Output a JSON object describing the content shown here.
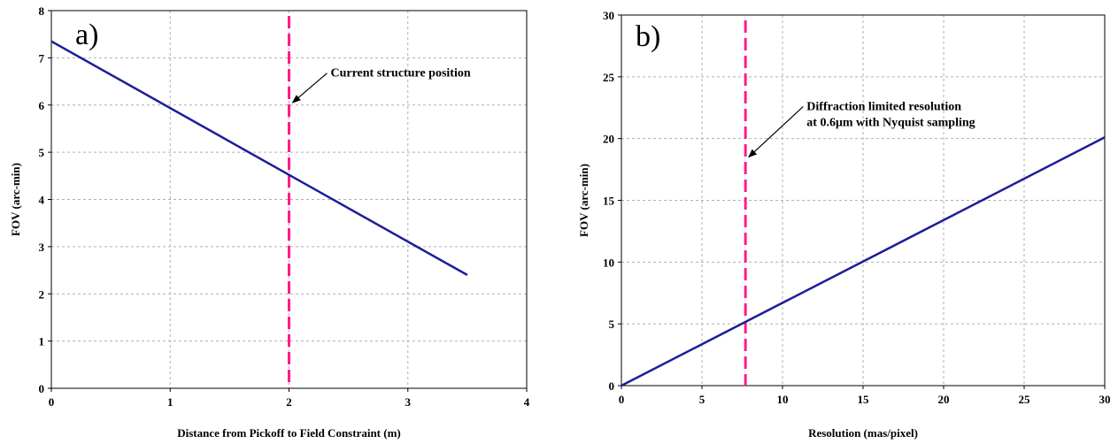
{
  "chart_data": [
    {
      "type": "line",
      "panel_label": "a)",
      "xlabel": "Distance from Pickoff to Field Constraint (m)",
      "ylabel": "FOV (arc-min)",
      "xlim": [
        0,
        4
      ],
      "ylim": [
        0,
        8
      ],
      "xticks": [
        "0",
        "1",
        "2",
        "3",
        "4"
      ],
      "yticks": [
        "0",
        "1",
        "2",
        "3",
        "4",
        "5",
        "6",
        "7",
        "8"
      ],
      "grid": true,
      "series": [
        {
          "x": [
            0,
            3.5
          ],
          "y": [
            7.35,
            2.4
          ],
          "color": "#1c1c9a"
        }
      ],
      "vline": {
        "x": 2,
        "color": "#ff1a8c"
      },
      "annotation": {
        "lines": [
          "Current structure position"
        ],
        "arrow_target": [
          2.03,
          6.05
        ],
        "text_anchor": [
          2.35,
          6.6
        ]
      }
    },
    {
      "type": "line",
      "panel_label": "b)",
      "xlabel": "Resolution (mas/pixel)",
      "ylabel": "FOV (arc-min)",
      "xlim": [
        0,
        30
      ],
      "ylim": [
        0,
        30
      ],
      "xticks": [
        "0",
        "5",
        "10",
        "15",
        "20",
        "25",
        "30"
      ],
      "yticks": [
        "0",
        "5",
        "10",
        "15",
        "20",
        "25",
        "30"
      ],
      "grid": true,
      "series": [
        {
          "x": [
            0,
            30
          ],
          "y": [
            0,
            20.1
          ],
          "color": "#1c1c9a"
        }
      ],
      "vline": {
        "x": 7.7,
        "color": "#ff1a8c"
      },
      "annotation": {
        "lines": [
          "Diffraction limited resolution",
          "at 0.6μm with Nyquist sampling"
        ],
        "arrow_target": [
          7.9,
          18.5
        ],
        "text_anchor": [
          11.5,
          22.3
        ]
      }
    }
  ]
}
